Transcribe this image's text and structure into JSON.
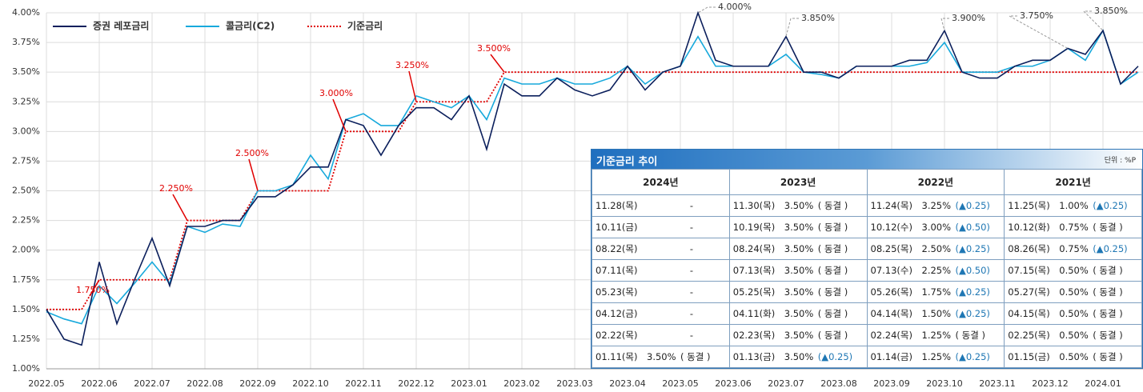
{
  "chart_data": {
    "type": "line",
    "categories": [
      "2022.05",
      null,
      null,
      "2022.06",
      null,
      null,
      "2022.07",
      null,
      null,
      "2022.08",
      null,
      null,
      "2022.09",
      null,
      null,
      "2022.10",
      null,
      null,
      "2022.11",
      null,
      null,
      "2022.12",
      null,
      null,
      "2023.01",
      null,
      null,
      "2023.02",
      null,
      null,
      "2023.03",
      null,
      null,
      "2023.04",
      null,
      null,
      "2023.05",
      null,
      null,
      "2023.06",
      null,
      null,
      "2023.07",
      null,
      null,
      "2023.08",
      null,
      null,
      "2023.09",
      null,
      null,
      "2023.10",
      null,
      null,
      "2023.11",
      null,
      null,
      "2023.12",
      null,
      null,
      "2024.01",
      null,
      null
    ],
    "series": [
      {
        "name": "증권 레포금리",
        "color": "#0b1f5c",
        "style": "solid",
        "values": [
          1.5,
          1.25,
          1.2,
          1.9,
          1.38,
          1.75,
          2.1,
          1.7,
          2.2,
          2.2,
          2.25,
          2.25,
          2.45,
          2.45,
          2.55,
          2.7,
          2.7,
          3.1,
          3.05,
          2.8,
          3.05,
          3.2,
          3.2,
          3.1,
          3.3,
          2.85,
          3.4,
          3.3,
          3.3,
          3.45,
          3.35,
          3.3,
          3.35,
          3.55,
          3.35,
          3.5,
          3.55,
          4.0,
          3.6,
          3.55,
          3.55,
          3.55,
          3.8,
          3.5,
          3.5,
          3.45,
          3.55,
          3.55,
          3.55,
          3.6,
          3.6,
          3.85,
          3.5,
          3.45,
          3.45,
          3.55,
          3.6,
          3.6,
          3.7,
          3.65,
          3.85,
          3.4,
          3.55
        ]
      },
      {
        "name": "콜금리(C2)",
        "color": "#17a9dc",
        "style": "solid",
        "values": [
          1.48,
          1.42,
          1.38,
          1.7,
          1.55,
          1.72,
          1.9,
          1.72,
          2.2,
          2.15,
          2.22,
          2.2,
          2.5,
          2.5,
          2.55,
          2.8,
          2.6,
          3.1,
          3.15,
          3.05,
          3.05,
          3.3,
          3.25,
          3.2,
          3.3,
          3.1,
          3.45,
          3.4,
          3.4,
          3.45,
          3.4,
          3.4,
          3.45,
          3.55,
          3.4,
          3.5,
          3.55,
          3.8,
          3.55,
          3.55,
          3.55,
          3.55,
          3.65,
          3.5,
          3.48,
          3.45,
          3.55,
          3.55,
          3.55,
          3.55,
          3.58,
          3.75,
          3.5,
          3.5,
          3.5,
          3.55,
          3.55,
          3.6,
          3.7,
          3.6,
          3.85,
          3.4,
          3.5
        ]
      },
      {
        "name": "기준금리",
        "color": "#e00000",
        "style": "dotted",
        "values": [
          1.5,
          1.5,
          1.5,
          1.75,
          1.75,
          1.75,
          1.75,
          1.75,
          2.25,
          2.25,
          2.25,
          2.25,
          2.5,
          2.5,
          2.5,
          2.5,
          2.5,
          3.0,
          3.0,
          3.0,
          3.0,
          3.25,
          3.25,
          3.25,
          3.25,
          3.25,
          3.5,
          3.5,
          3.5,
          3.5,
          3.5,
          3.5,
          3.5,
          3.5,
          3.5,
          3.5,
          3.5,
          3.5,
          3.5,
          3.5,
          3.5,
          3.5,
          3.5,
          3.5,
          3.5,
          3.5,
          3.5,
          3.5,
          3.5,
          3.5,
          3.5,
          3.5,
          3.5,
          3.5,
          3.5,
          3.5,
          3.5,
          3.5,
          3.5,
          3.5,
          3.5,
          3.5,
          3.5
        ]
      }
    ],
    "ylim": [
      1.0,
      4.0
    ],
    "yticks": [
      {
        "value": 1.0,
        "label": "1.00%"
      },
      {
        "value": 1.25,
        "label": "1.25%"
      },
      {
        "value": 1.5,
        "label": "1.50%"
      },
      {
        "value": 1.75,
        "label": "1.75%"
      },
      {
        "value": 2.0,
        "label": "2.00%"
      },
      {
        "value": 2.25,
        "label": "2.25%"
      },
      {
        "value": 2.5,
        "label": "2.50%"
      },
      {
        "value": 2.75,
        "label": "2.75%"
      },
      {
        "value": 3.0,
        "label": "3.00%"
      },
      {
        "value": 3.25,
        "label": "3.25%"
      },
      {
        "value": 3.5,
        "label": "3.50%"
      },
      {
        "value": 3.75,
        "label": "3.75%"
      },
      {
        "value": 4.0,
        "label": "4.00%"
      }
    ],
    "grid": true,
    "legend": "top-left",
    "annotations": [
      "1.750%",
      "2.250%",
      "2.500%",
      "3.000%",
      "3.250%",
      "3.500%",
      "4.000%",
      "3.850%",
      "3.900%",
      "3.750%",
      "3.850%"
    ]
  },
  "table": {
    "title": "기준금리 추이",
    "unit": "단위 : %P",
    "headers": [
      "2024년",
      "2023년",
      "2022년",
      "2021년"
    ],
    "rows": [
      [
        {
          "date": "11.28(목)",
          "rate": "-"
        },
        {
          "date": "11.30(목)",
          "rate": "3.50%",
          "change": "( 동결 )"
        },
        {
          "date": "11.24(목)",
          "rate": "3.25%",
          "change": "(▲0.25)"
        },
        {
          "date": "11.25(목)",
          "rate": "1.00%",
          "change": "(▲0.25)"
        }
      ],
      [
        {
          "date": "10.11(금)",
          "rate": "-"
        },
        {
          "date": "10.19(목)",
          "rate": "3.50%",
          "change": "( 동결 )"
        },
        {
          "date": "10.12(수)",
          "rate": "3.00%",
          "change": "(▲0.50)"
        },
        {
          "date": "10.12(화)",
          "rate": "0.75%",
          "change": "( 동결 )"
        }
      ],
      [
        {
          "date": "08.22(목)",
          "rate": "-"
        },
        {
          "date": "08.24(목)",
          "rate": "3.50%",
          "change": "( 동결 )"
        },
        {
          "date": "08.25(목)",
          "rate": "2.50%",
          "change": "(▲0.25)"
        },
        {
          "date": "08.26(목)",
          "rate": "0.75%",
          "change": "(▲0.25)"
        }
      ],
      [
        {
          "date": "07.11(목)",
          "rate": "-"
        },
        {
          "date": "07.13(목)",
          "rate": "3.50%",
          "change": "( 동결 )"
        },
        {
          "date": "07.13(수)",
          "rate": "2.25%",
          "change": "(▲0.50)"
        },
        {
          "date": "07.15(목)",
          "rate": "0.50%",
          "change": "( 동결 )"
        }
      ],
      [
        {
          "date": "05.23(목)",
          "rate": "-"
        },
        {
          "date": "05.25(목)",
          "rate": "3.50%",
          "change": "( 동결 )"
        },
        {
          "date": "05.26(목)",
          "rate": "1.75%",
          "change": "(▲0.25)"
        },
        {
          "date": "05.27(목)",
          "rate": "0.50%",
          "change": "( 동결 )"
        }
      ],
      [
        {
          "date": "04.12(금)",
          "rate": "-"
        },
        {
          "date": "04.11(화)",
          "rate": "3.50%",
          "change": "( 동결 )"
        },
        {
          "date": "04.14(목)",
          "rate": "1.50%",
          "change": "(▲0.25)"
        },
        {
          "date": "04.15(목)",
          "rate": "0.50%",
          "change": "( 동결 )"
        }
      ],
      [
        {
          "date": "02.22(목)",
          "rate": "-"
        },
        {
          "date": "02.23(목)",
          "rate": "3.50%",
          "change": "( 동결 )"
        },
        {
          "date": "02.24(목)",
          "rate": "1.25%",
          "change": "( 동결 )"
        },
        {
          "date": "02.25(목)",
          "rate": "0.50%",
          "change": "( 동결 )"
        }
      ],
      [
        {
          "date": "01.11(목)",
          "rate": "3.50%",
          "change": "( 동결 )"
        },
        {
          "date": "01.13(금)",
          "rate": "3.50%",
          "change": "(▲0.25)"
        },
        {
          "date": "01.14(금)",
          "rate": "1.25%",
          "change": "(▲0.25)"
        },
        {
          "date": "01.15(금)",
          "rate": "0.50%",
          "change": "( 동결 )"
        }
      ]
    ]
  }
}
